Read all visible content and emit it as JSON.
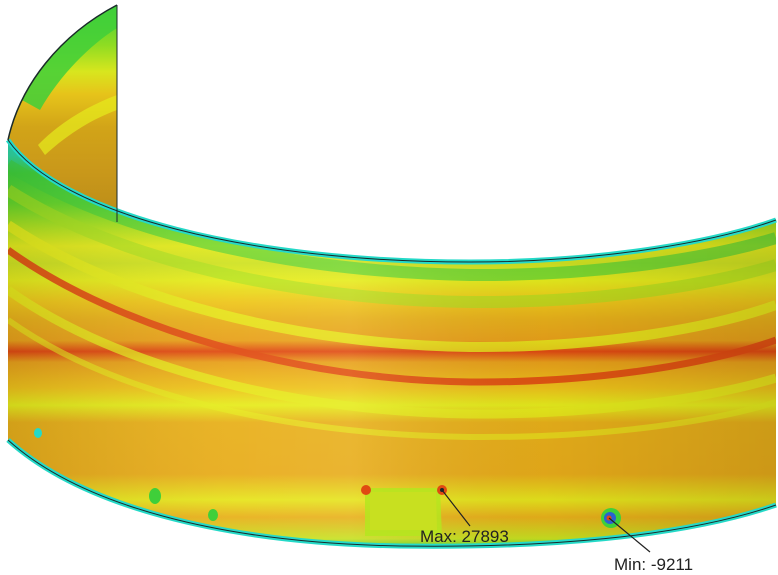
{
  "results": {
    "max_label": "Max: 27893",
    "min_label": "Min: -9211"
  },
  "colors": {
    "background": "#ffffff",
    "cyan": "#25d9c8",
    "green": "#3fcf3a",
    "yellow_green": "#b4e61e",
    "yellow": "#e6ec1c",
    "orange": "#e8b01a",
    "red": "#e04a12",
    "blue": "#2a62d0",
    "edge": "#1a2a2a"
  }
}
